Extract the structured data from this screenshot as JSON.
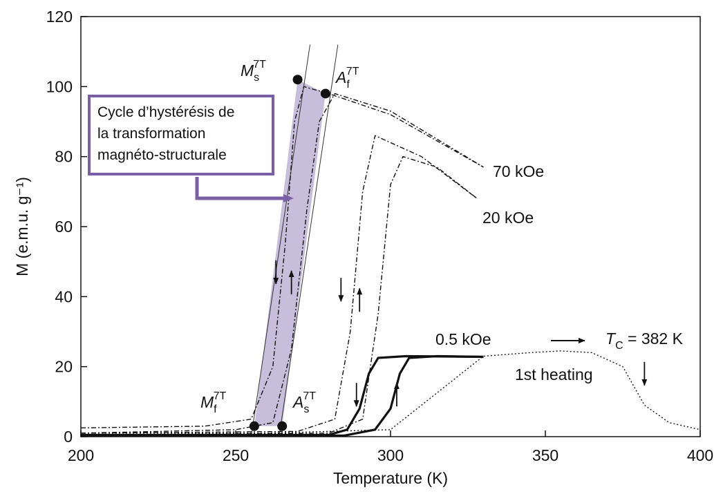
{
  "callout": {
    "lines": [
      "Cycle d’hystérésis de",
      "la transformation",
      "magnéto-structurale"
    ],
    "color": "#7b5fa6"
  },
  "chart_data": {
    "type": "line",
    "xlabel": "Temperature (K)",
    "ylabel": "M (e.m.u. g⁻¹)",
    "xlim": [
      200,
      400
    ],
    "ylim": [
      0,
      120
    ],
    "xticks": [
      200,
      250,
      300,
      350,
      400
    ],
    "yticks": [
      0,
      20,
      40,
      60,
      80,
      100,
      120
    ],
    "grid": false,
    "highlight_color": "#b9aed3",
    "annotations": {
      "ms": {
        "main": "M",
        "sub": "s",
        "sup": "7T"
      },
      "af": {
        "main": "A",
        "sub": "f",
        "sup": "7T"
      },
      "mf": {
        "main": "M",
        "sub": "f",
        "sup": "7T"
      },
      "as": {
        "main": "A",
        "sub": "s",
        "sup": "7T"
      },
      "tc": {
        "main": "T",
        "sub": "C",
        "rest": " = 382 K"
      },
      "first_heating": "1st heating"
    },
    "transition_points": [
      {
        "name": "Ms",
        "x": 270,
        "y": 102
      },
      {
        "name": "Af",
        "x": 279,
        "y": 98
      },
      {
        "name": "Mf",
        "x": 256,
        "y": 3
      },
      {
        "name": "As",
        "x": 265,
        "y": 3
      }
    ],
    "hysteresis_band": [
      [
        256,
        3
      ],
      [
        265,
        3
      ],
      [
        279,
        98
      ],
      [
        270,
        102
      ]
    ],
    "series": [
      {
        "name": "70 kOe",
        "style": "dashdot",
        "points": [
          [
            200,
            2.5
          ],
          [
            240,
            3
          ],
          [
            255,
            5
          ],
          [
            262,
            20
          ],
          [
            266,
            55
          ],
          [
            269,
            90
          ],
          [
            272,
            100
          ],
          [
            280,
            98
          ],
          [
            300,
            92
          ],
          [
            330,
            77
          ]
        ]
      },
      {
        "name": "70 kOe",
        "style": "dashdot",
        "points": [
          [
            200,
            1
          ],
          [
            250,
            2
          ],
          [
            262,
            4
          ],
          [
            268,
            25
          ],
          [
            273,
            65
          ],
          [
            277,
            90
          ],
          [
            282,
            98
          ],
          [
            300,
            93
          ],
          [
            330,
            77
          ]
        ]
      },
      {
        "name": "20 kOe",
        "style": "dashdot",
        "points": [
          [
            200,
            1
          ],
          [
            270,
            1.5
          ],
          [
            282,
            5
          ],
          [
            287,
            30
          ],
          [
            291,
            70
          ],
          [
            295,
            86
          ],
          [
            310,
            80
          ],
          [
            328,
            68
          ]
        ]
      },
      {
        "name": "20 kOe",
        "style": "dashdot",
        "points": [
          [
            200,
            0.5
          ],
          [
            280,
            1
          ],
          [
            291,
            5
          ],
          [
            296,
            35
          ],
          [
            300,
            72
          ],
          [
            304,
            80
          ],
          [
            315,
            77
          ],
          [
            328,
            68
          ]
        ]
      },
      {
        "name": "0.5 kOe",
        "style": "solid",
        "points": [
          [
            200,
            0.5
          ],
          [
            280,
            0.5
          ],
          [
            286,
            2
          ],
          [
            290,
            8
          ],
          [
            293,
            18
          ],
          [
            296,
            22.5
          ],
          [
            305,
            23
          ],
          [
            330,
            22.8
          ]
        ]
      },
      {
        "name": "0.5 kOe",
        "style": "solid",
        "points": [
          [
            200,
            0.3
          ],
          [
            285,
            0.3
          ],
          [
            295,
            2
          ],
          [
            300,
            8
          ],
          [
            303,
            18
          ],
          [
            306,
            22.5
          ],
          [
            315,
            23
          ],
          [
            330,
            22.8
          ]
        ]
      },
      {
        "name": "1st heating",
        "style": "dotted",
        "points": [
          [
            200,
            1
          ],
          [
            260,
            1
          ],
          [
            300,
            2
          ],
          [
            330,
            23
          ],
          [
            345,
            24
          ],
          [
            355,
            24.5
          ],
          [
            365,
            24
          ],
          [
            375,
            20
          ],
          [
            382,
            9
          ],
          [
            390,
            4
          ],
          [
            400,
            2
          ]
        ]
      }
    ],
    "curve_labels": [
      "70 kOe",
      "20 kOe",
      "0.5 kOe"
    ],
    "direction_arrows": [
      {
        "x": 263,
        "y": 47,
        "dir": "down"
      },
      {
        "x": 268,
        "y": 44,
        "dir": "up"
      },
      {
        "x": 284,
        "y": 42,
        "dir": "down"
      },
      {
        "x": 290,
        "y": 39,
        "dir": "up"
      },
      {
        "x": 289,
        "y": 12,
        "dir": "down"
      },
      {
        "x": 302,
        "y": 12,
        "dir": "up"
      },
      {
        "x": 382,
        "y": 18,
        "dir": "down"
      }
    ]
  }
}
